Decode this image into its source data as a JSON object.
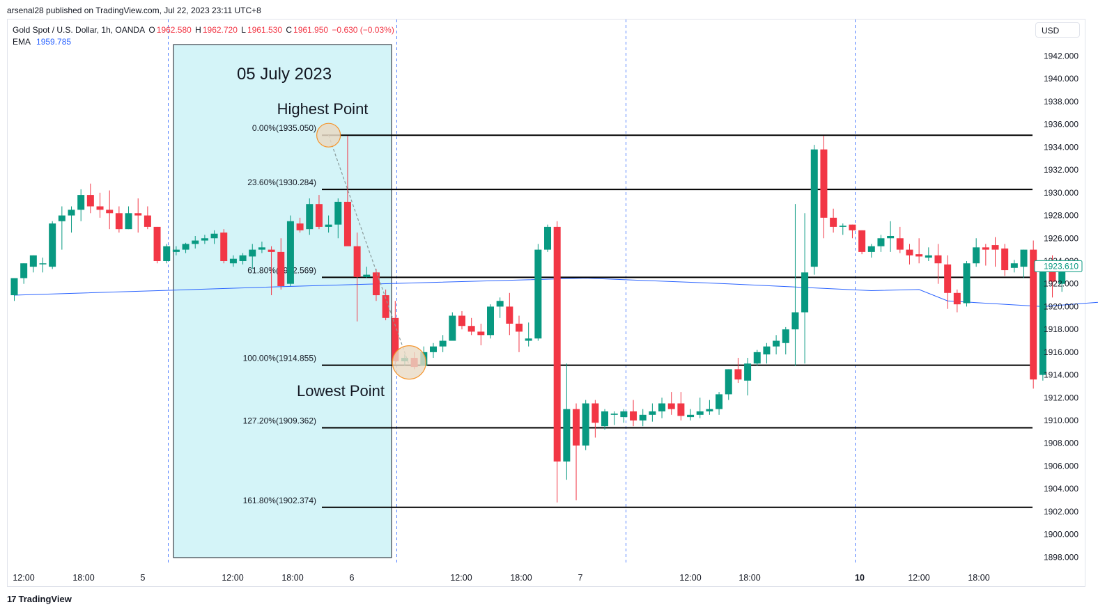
{
  "header": {
    "published": "arsenal28 published on TradingView.com, Jul 22, 2023 23:11 UTC+8"
  },
  "legend": {
    "symbol": "Gold Spot / U.S. Dollar, 1h, OANDA",
    "o_label": "O",
    "o_value": "1962.580",
    "h_label": "H",
    "h_value": "1962.720",
    "l_label": "L",
    "l_value": "1961.530",
    "c_label": "C",
    "c_value": "1961.950",
    "change": "−0.630 (−0.03%)",
    "ema_label": "EMA",
    "ema_value": "1959.785"
  },
  "currency_button": "USD",
  "brand": {
    "name": "TradingView",
    "logo": "tradingview-logo-icon"
  },
  "colors": {
    "up": "#089981",
    "down": "#f23645",
    "ema": "#2962ff",
    "highlight": "#d4f4f8",
    "marker_fill": "#e8d9c4",
    "marker_stroke": "#f5942b",
    "grid_divider": "#2962ff"
  },
  "chart_data": {
    "type": "candlestick",
    "title": "05 July 2023",
    "price_ticks": [
      "1942.000",
      "1940.000",
      "1938.000",
      "1936.000",
      "1934.000",
      "1932.000",
      "1930.000",
      "1928.000",
      "1926.000",
      "1924.000",
      "1922.000",
      "1920.000",
      "1918.000",
      "1916.000",
      "1914.000",
      "1912.000",
      "1910.000",
      "1908.000",
      "1906.000",
      "1904.000",
      "1902.000",
      "1900.000",
      "1898.000"
    ],
    "time_labels": [
      {
        "label": "12:00",
        "bold": false
      },
      {
        "label": "18:00",
        "bold": false
      },
      {
        "label": "5",
        "bold": false
      },
      {
        "label": "12:00",
        "bold": false
      },
      {
        "label": "18:00",
        "bold": false
      },
      {
        "label": "6",
        "bold": false
      },
      {
        "label": "12:00",
        "bold": false
      },
      {
        "label": "18:00",
        "bold": false
      },
      {
        "label": "7",
        "bold": false
      },
      {
        "label": "12:00",
        "bold": false
      },
      {
        "label": "18:00",
        "bold": false
      },
      {
        "label": "10",
        "bold": true
      },
      {
        "label": "12:00",
        "bold": false
      },
      {
        "label": "18:00",
        "bold": false
      }
    ],
    "last_price": "1923.610",
    "fib_levels": [
      {
        "label": "0.00%(1935.050)",
        "price": 1935.05
      },
      {
        "label": "23.60%(1930.284)",
        "price": 1930.284
      },
      {
        "label": "61.80%(1922.569)",
        "price": 1922.569
      },
      {
        "label": "100.00%(1914.855)",
        "price": 1914.855
      },
      {
        "label": "127.20%(1909.362)",
        "price": 1909.362
      },
      {
        "label": "161.80%(1902.374)",
        "price": 1902.374
      }
    ],
    "annotations": {
      "high": "Highest Point",
      "low": "Lowest Point",
      "high_price": 1935.05,
      "low_price": 1914.855
    },
    "candles": [
      [
        1921.0,
        1922.5,
        1920.5,
        1922.5
      ],
      [
        1922.5,
        1923.8,
        1922.0,
        1923.8
      ],
      [
        1923.5,
        1924.5,
        1923.0,
        1924.5
      ],
      [
        1923.8,
        1924.3,
        1923.0,
        1923.8
      ],
      [
        1923.5,
        1927.5,
        1923.3,
        1927.3
      ],
      [
        1927.5,
        1928.8,
        1925.0,
        1928.0
      ],
      [
        1928.0,
        1928.8,
        1926.5,
        1928.5
      ],
      [
        1928.5,
        1930.3,
        1927.5,
        1929.8
      ],
      [
        1929.8,
        1930.8,
        1928.2,
        1928.8
      ],
      [
        1928.8,
        1930.0,
        1927.8,
        1928.5
      ],
      [
        1928.5,
        1930.2,
        1926.8,
        1928.2
      ],
      [
        1928.2,
        1928.8,
        1926.5,
        1926.8
      ],
      [
        1926.8,
        1928.8,
        1926.8,
        1928.2
      ],
      [
        1928.2,
        1929.5,
        1926.5,
        1928.0
      ],
      [
        1928.0,
        1928.8,
        1926.8,
        1927.0
      ],
      [
        1927.0,
        1927.0,
        1923.8,
        1924.0
      ],
      [
        1924.0,
        1925.5,
        1923.8,
        1925.3
      ],
      [
        1924.8,
        1925.3,
        1924.5,
        1925.0
      ],
      [
        1925.0,
        1925.6,
        1924.7,
        1925.5
      ],
      [
        1925.5,
        1926.2,
        1925.1,
        1925.8
      ],
      [
        1925.8,
        1926.3,
        1925.5,
        1926.0
      ],
      [
        1926.0,
        1926.7,
        1925.5,
        1926.4
      ],
      [
        1926.5,
        1926.8,
        1923.8,
        1924.0
      ],
      [
        1923.8,
        1924.5,
        1923.5,
        1924.2
      ],
      [
        1924.0,
        1924.7,
        1923.7,
        1924.5
      ],
      [
        1924.4,
        1925.5,
        1923.3,
        1925.0
      ],
      [
        1925.0,
        1925.7,
        1924.7,
        1925.2
      ],
      [
        1925.0,
        1925.3,
        1921.0,
        1924.8
      ],
      [
        1924.8,
        1926.0,
        1921.5,
        1921.8
      ],
      [
        1922.0,
        1928.0,
        1921.8,
        1927.5
      ],
      [
        1927.3,
        1927.8,
        1926.5,
        1926.7
      ],
      [
        1926.8,
        1929.5,
        1926.3,
        1929.0
      ],
      [
        1929.0,
        1929.8,
        1926.8,
        1927.0
      ],
      [
        1927.0,
        1928.0,
        1926.5,
        1927.2
      ],
      [
        1927.2,
        1929.5,
        1926.0,
        1929.2
      ],
      [
        1929.2,
        1935.0,
        1925.5,
        1925.3
      ],
      [
        1925.3,
        1926.5,
        1918.7,
        1922.6
      ],
      [
        1922.6,
        1923.5,
        1922.5,
        1922.8
      ],
      [
        1923.0,
        1923.3,
        1920.5,
        1921.0
      ],
      [
        1921.0,
        1921.5,
        1918.8,
        1919.0
      ],
      [
        1919.0,
        1920.5,
        1914.9,
        1915.2
      ],
      [
        1915.2,
        1915.8,
        1914.8,
        1915.5
      ],
      [
        1915.5,
        1916.0,
        1914.5,
        1914.7
      ],
      [
        1914.8,
        1916.5,
        1914.8,
        1916.0
      ],
      [
        1916.0,
        1916.8,
        1915.5,
        1916.5
      ],
      [
        1916.5,
        1917.5,
        1916.0,
        1917.0
      ],
      [
        1917.0,
        1919.5,
        1917.0,
        1919.2
      ],
      [
        1919.2,
        1919.6,
        1918.0,
        1918.3
      ],
      [
        1918.3,
        1919.0,
        1917.5,
        1917.8
      ],
      [
        1917.8,
        1918.5,
        1916.6,
        1917.5
      ],
      [
        1917.5,
        1920.2,
        1917.2,
        1920.0
      ],
      [
        1920.0,
        1920.8,
        1919.0,
        1920.5
      ],
      [
        1920.0,
        1921.2,
        1917.5,
        1918.5
      ],
      [
        1918.5,
        1919.2,
        1916.0,
        1917.8
      ],
      [
        1917.0,
        1918.6,
        1916.5,
        1917.2
      ],
      [
        1917.2,
        1925.5,
        1917.0,
        1925.0
      ],
      [
        1925.0,
        1927.2,
        1924.8,
        1927.0
      ],
      [
        1927.0,
        1927.5,
        1902.8,
        1906.4
      ],
      [
        1906.4,
        1915.0,
        1904.8,
        1911.0
      ],
      [
        1911.0,
        1911.5,
        1903.0,
        1907.8
      ],
      [
        1907.8,
        1911.8,
        1907.4,
        1911.5
      ],
      [
        1911.5,
        1911.8,
        1908.5,
        1909.8
      ],
      [
        1909.5,
        1911.0,
        1909.2,
        1910.8
      ],
      [
        1910.5,
        1910.8,
        1909.6,
        1910.6
      ],
      [
        1910.3,
        1911.0,
        1909.8,
        1910.8
      ],
      [
        1910.8,
        1911.8,
        1909.5,
        1910.0
      ],
      [
        1910.0,
        1911.0,
        1909.5,
        1910.5
      ],
      [
        1910.5,
        1911.5,
        1909.9,
        1910.8
      ],
      [
        1910.8,
        1912.0,
        1910.2,
        1911.5
      ],
      [
        1911.5,
        1912.5,
        1910.5,
        1911.0
      ],
      [
        1911.5,
        1912.5,
        1910.0,
        1910.4
      ],
      [
        1910.3,
        1911.0,
        1910.0,
        1910.5
      ],
      [
        1910.5,
        1912.0,
        1910.2,
        1910.8
      ],
      [
        1910.8,
        1911.8,
        1910.5,
        1911.0
      ],
      [
        1911.0,
        1912.5,
        1910.5,
        1912.3
      ],
      [
        1912.3,
        1914.5,
        1911.8,
        1914.5
      ],
      [
        1914.5,
        1915.5,
        1913.3,
        1913.6
      ],
      [
        1913.5,
        1915.5,
        1912.2,
        1915.0
      ],
      [
        1915.0,
        1916.2,
        1914.8,
        1916.0
      ],
      [
        1915.8,
        1916.8,
        1915.0,
        1916.5
      ],
      [
        1916.5,
        1917.5,
        1915.8,
        1917.0
      ],
      [
        1916.8,
        1918.2,
        1915.8,
        1918.0
      ],
      [
        1918.0,
        1929.0,
        1914.8,
        1919.5
      ],
      [
        1919.5,
        1928.2,
        1915.0,
        1923.0
      ],
      [
        1923.5,
        1934.2,
        1922.8,
        1933.8
      ],
      [
        1933.8,
        1935.0,
        1926.0,
        1927.8
      ],
      [
        1927.8,
        1928.6,
        1926.5,
        1927.0
      ],
      [
        1927.0,
        1927.3,
        1926.3,
        1927.1
      ],
      [
        1927.2,
        1927.2,
        1926.0,
        1926.7
      ],
      [
        1926.7,
        1926.7,
        1924.6,
        1924.8
      ],
      [
        1924.8,
        1925.5,
        1924.3,
        1925.3
      ],
      [
        1925.3,
        1926.3,
        1924.8,
        1926.0
      ],
      [
        1926.0,
        1927.5,
        1924.8,
        1926.2
      ],
      [
        1926.0,
        1927.0,
        1924.7,
        1925.0
      ],
      [
        1925.0,
        1925.5,
        1923.7,
        1924.5
      ],
      [
        1924.6,
        1926.0,
        1923.8,
        1924.4
      ],
      [
        1924.3,
        1925.2,
        1924.0,
        1924.5
      ],
      [
        1924.5,
        1925.5,
        1922.0,
        1923.8
      ],
      [
        1923.7,
        1924.5,
        1919.8,
        1921.2
      ],
      [
        1921.2,
        1921.5,
        1919.5,
        1920.2
      ],
      [
        1920.3,
        1924.0,
        1920.0,
        1923.8
      ],
      [
        1923.8,
        1926.0,
        1923.5,
        1925.2
      ],
      [
        1925.2,
        1925.5,
        1923.6,
        1925.0
      ],
      [
        1925.4,
        1926.1,
        1923.5,
        1925.0
      ],
      [
        1925.1,
        1925.5,
        1922.7,
        1923.2
      ],
      [
        1923.4,
        1924.1,
        1923.0,
        1923.8
      ],
      [
        1923.5,
        1925.0,
        1922.5,
        1925.0
      ],
      [
        1925.0,
        1925.8,
        1912.8,
        1913.6
      ],
      [
        1914.0,
        1923.3,
        1913.5,
        1923.2
      ],
      [
        1923.2,
        1924.5,
        1920.8,
        1922.2
      ],
      [
        1922.0,
        1923.8,
        1921.3,
        1923.6
      ]
    ],
    "ema": [
      [
        0,
        1921.0
      ],
      [
        30,
        1921.8
      ],
      [
        60,
        1922.5
      ],
      [
        75,
        1922.0
      ],
      [
        90,
        1921.4
      ],
      [
        95,
        1921.5
      ],
      [
        98,
        1920.5
      ],
      [
        108,
        1920.0
      ],
      [
        111,
        1920.2
      ],
      [
        125,
        1921.1
      ],
      [
        140,
        1921.4
      ],
      [
        152,
        1921.2
      ]
    ]
  }
}
